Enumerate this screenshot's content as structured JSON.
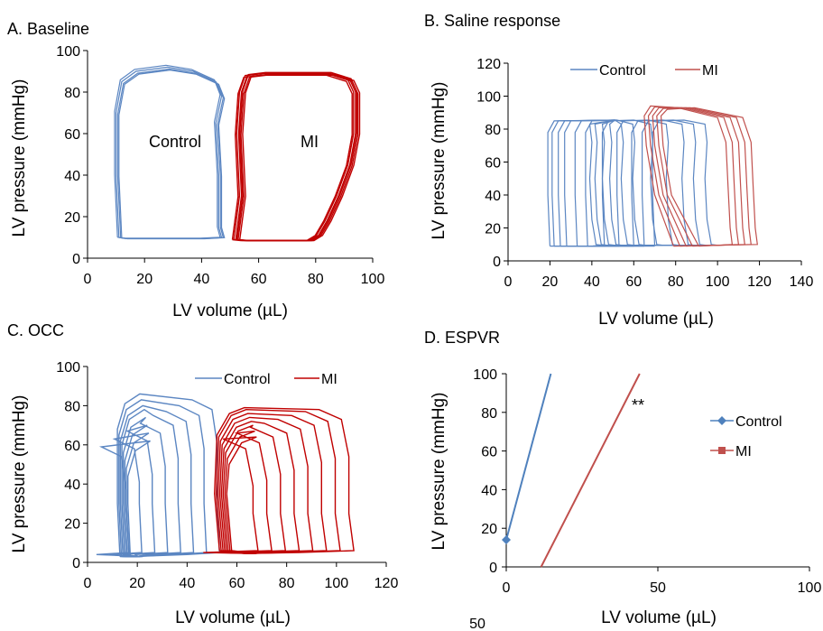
{
  "colors": {
    "control": "#5b86c2",
    "mi": "#c00000",
    "mi_light": "#c0504d",
    "axis": "#000000"
  },
  "footer_text": "50",
  "chart_data": [
    {
      "type": "line",
      "title": "A. Baseline",
      "xlabel": "LV volume (µL)",
      "ylabel": "LV pressure (mmHg)",
      "xlim": [
        0,
        100
      ],
      "ylim": [
        0,
        100
      ],
      "xticks": [
        "0",
        "20",
        "40",
        "60",
        "80",
        "100"
      ],
      "yticks": [
        "0",
        "20",
        "40",
        "60",
        "80",
        "100"
      ],
      "annotations": [
        "Control",
        "MI"
      ],
      "series": [
        {
          "points": [
            [
              11,
              10
            ],
            [
              10,
              40
            ],
            [
              10,
              70
            ],
            [
              12,
              85
            ],
            [
              17,
              90
            ],
            [
              28,
              92
            ],
            [
              37,
              90
            ],
            [
              45,
              85
            ],
            [
              47,
              78
            ],
            [
              45,
              65
            ],
            [
              46,
              40
            ],
            [
              46,
              15
            ],
            [
              47,
              10
            ],
            [
              40,
              9.5
            ],
            [
              25,
              9.5
            ],
            [
              13,
              9.5
            ],
            [
              11,
              10
            ]
          ]
        },
        {
          "points": [
            [
              52,
              9
            ],
            [
              54,
              30
            ],
            [
              53,
              60
            ],
            [
              54,
              80
            ],
            [
              56,
              88
            ],
            [
              62,
              89
            ],
            [
              72,
              89
            ],
            [
              85,
              89
            ],
            [
              92,
              86
            ],
            [
              94,
              80
            ],
            [
              94,
              60
            ],
            [
              92,
              45
            ],
            [
              88,
              30
            ],
            [
              84,
              18
            ],
            [
              81,
              11
            ],
            [
              78,
              8.5
            ],
            [
              65,
              8.5
            ],
            [
              55,
              8.5
            ],
            [
              52,
              9
            ]
          ]
        }
      ]
    },
    {
      "type": "line",
      "title": "B. Saline response",
      "xlabel": "LV volume (µL)",
      "ylabel": "LV pressure (mmHg)",
      "xlim": [
        0,
        140
      ],
      "ylim": [
        0,
        120
      ],
      "xticks": [
        "0",
        "20",
        "40",
        "60",
        "80",
        "100",
        "120",
        "140"
      ],
      "yticks": [
        "0",
        "20",
        "40",
        "60",
        "80",
        "100",
        "120"
      ],
      "legend": {
        "position": "top",
        "entries": [
          "Control",
          "MI"
        ]
      },
      "control_loops_esv": [
        20,
        22,
        25,
        28,
        33,
        38,
        46,
        53,
        60,
        65,
        70
      ],
      "mi_loops_esv": [
        66,
        68,
        70,
        72,
        74
      ],
      "series": [
        {
          "name": "Control",
          "points": [
            [
              20,
              9
            ],
            [
              19,
              80
            ],
            [
              22,
              85
            ],
            [
              50,
              85
            ],
            [
              75,
              83
            ],
            [
              80,
              74
            ],
            [
              79,
              60
            ],
            [
              79,
              40
            ],
            [
              80,
              20
            ],
            [
              81,
              10
            ],
            [
              60,
              9
            ],
            [
              35,
              8.5
            ],
            [
              20,
              9
            ]
          ]
        },
        {
          "name": "MI",
          "points": [
            [
              80,
              9
            ],
            [
              72,
              40
            ],
            [
              68,
              70
            ],
            [
              67,
              90
            ],
            [
              72,
              95
            ],
            [
              90,
              93
            ],
            [
              105,
              88
            ],
            [
              113,
              75
            ],
            [
              114,
              50
            ],
            [
              115,
              25
            ],
            [
              116,
              10
            ],
            [
              100,
              9
            ],
            [
              88,
              8.5
            ],
            [
              80,
              9
            ]
          ]
        }
      ]
    },
    {
      "type": "line",
      "title": "C. OCC",
      "xlabel": "LV volume (µL)",
      "ylabel": "LV pressure (mmHg)",
      "xlim": [
        0,
        120
      ],
      "ylim": [
        0,
        100
      ],
      "xticks": [
        "0",
        "20",
        "40",
        "60",
        "80",
        "100",
        "120"
      ],
      "yticks": [
        "0",
        "20",
        "40",
        "60",
        "80",
        "100"
      ],
      "legend": {
        "position": "top-right",
        "entries": [
          "Control",
          "MI"
        ]
      },
      "control_loops_peak": [
        86,
        83,
        80,
        78,
        74,
        70,
        66,
        62
      ],
      "mi_loops_peak": [
        79,
        78,
        76,
        74,
        72,
        70,
        67,
        64
      ],
      "series": [
        {
          "name": "Control",
          "points": [
            [
              12,
              4
            ],
            [
              11,
              40
            ],
            [
              12,
              70
            ],
            [
              16,
              82
            ],
            [
              22,
              86
            ],
            [
              40,
              82
            ],
            [
              50,
              78
            ],
            [
              52,
              60
            ],
            [
              52,
              30
            ],
            [
              53,
              6
            ],
            [
              40,
              4.5
            ],
            [
              20,
              3
            ],
            [
              12,
              4
            ]
          ]
        },
        {
          "name": "MI",
          "points": [
            [
              52,
              5
            ],
            [
              50,
              40
            ],
            [
              51,
              65
            ],
            [
              56,
              77
            ],
            [
              62,
              79
            ],
            [
              85,
              79
            ],
            [
              100,
              76
            ],
            [
              104,
              60
            ],
            [
              104,
              30
            ],
            [
              106,
              6
            ],
            [
              80,
              5
            ],
            [
              60,
              4.5
            ],
            [
              52,
              5
            ]
          ]
        }
      ]
    },
    {
      "type": "line",
      "title": "D. ESPVR",
      "xlabel": "LV volume (µL)",
      "ylabel": "LV pressure (mmHg)",
      "xlim": [
        0,
        100
      ],
      "ylim": [
        0,
        100
      ],
      "xticks": [
        "0",
        "50",
        "100"
      ],
      "yticks": [
        "0",
        "20",
        "40",
        "60",
        "80",
        "100"
      ],
      "legend": {
        "position": "right",
        "entries": [
          "Control",
          "MI"
        ]
      },
      "annotation": "**",
      "series": [
        {
          "name": "Control",
          "marker": "diamond",
          "points": [
            [
              0,
              14
            ],
            [
              14.7,
              100
            ]
          ]
        },
        {
          "name": "MI",
          "marker": "square",
          "points": [
            [
              11.5,
              0
            ],
            [
              44,
              100
            ]
          ]
        }
      ]
    }
  ]
}
